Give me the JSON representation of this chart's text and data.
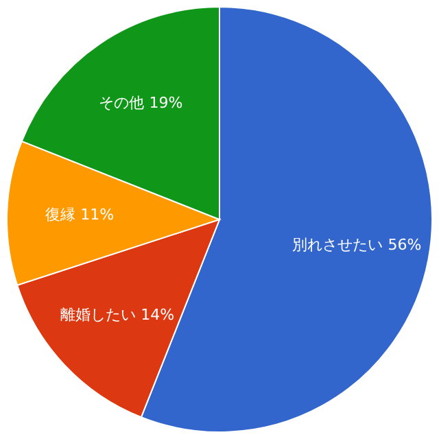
{
  "chart_data": {
    "type": "pie",
    "categories": [
      "別れさせたい",
      "離婚したい",
      "復縁",
      "その他"
    ],
    "values": [
      56,
      14,
      11,
      19
    ],
    "value_labels": [
      "56%",
      "14%",
      "11%",
      "19%"
    ],
    "colors": [
      "#3366cc",
      "#dc3912",
      "#ff9900",
      "#109618"
    ],
    "legend": false
  }
}
